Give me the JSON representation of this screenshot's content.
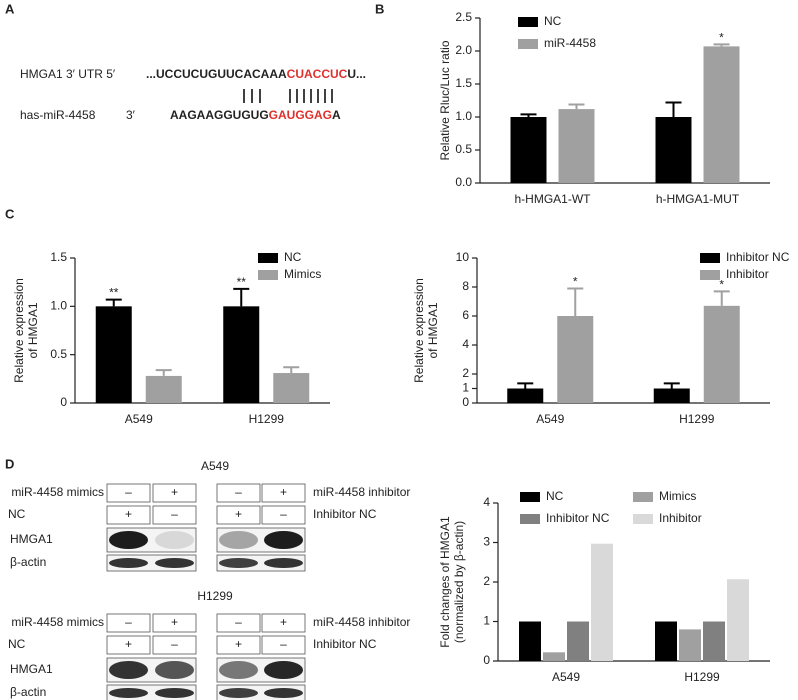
{
  "panel_labels": [
    "A",
    "B",
    "C",
    "D"
  ],
  "panel_a": {
    "rows": [
      {
        "label": "HMGA1 3′ UTR 5′",
        "seq_parts": [
          "...UCCUCUGUUCACAAA",
          "CUACCUC",
          "U..."
        ]
      },
      {
        "label": "has-miR-4458",
        "end": "3′",
        "seq_parts": [
          "AAGAAGGUGUG",
          "GAUGGAG",
          "A"
        ]
      }
    ]
  },
  "panel_d_blots": [
    {
      "title": "A549",
      "left_rows": [
        {
          "label": "miR-4458 mimics",
          "signs": [
            "–",
            "+"
          ]
        },
        {
          "label": "NC",
          "signs": [
            "+",
            "–"
          ]
        }
      ],
      "right_rows": [
        {
          "label": "miR-4458 inhibitor",
          "signs": [
            "–",
            "+"
          ]
        },
        {
          "label": "Inhibitor NC",
          "signs": [
            "+",
            "–"
          ]
        }
      ],
      "bands": [
        "HMGA1",
        "β-actin"
      ]
    },
    {
      "title": "H1299",
      "left_rows": [
        {
          "label": "miR-4458 mimics",
          "signs": [
            "–",
            "+"
          ]
        },
        {
          "label": "NC",
          "signs": [
            "+",
            "–"
          ]
        }
      ],
      "right_rows": [
        {
          "label": "miR-4458 inhibitor",
          "signs": [
            "–",
            "+"
          ]
        },
        {
          "label": "Inhibitor NC",
          "signs": [
            "+",
            "–"
          ]
        }
      ],
      "bands": [
        "HMGA1",
        "β-actin"
      ]
    }
  ],
  "chart_data": [
    {
      "type": "bar",
      "ylabel": [
        "Relative Rluc/Luc ratio"
      ],
      "categories": [
        "h-HMGA1-WT",
        "h-HMGA1-MUT"
      ],
      "series": [
        {
          "name": "NC",
          "color": "#000000",
          "values": [
            1.0,
            1.0
          ],
          "errors": [
            0.04,
            0.22
          ]
        },
        {
          "name": "miR-4458",
          "color": "#a0a0a0",
          "values": [
            1.12,
            2.07
          ],
          "errors": [
            0.07,
            0.03
          ],
          "significance": [
            null,
            "*"
          ]
        }
      ],
      "ylim": [
        0,
        2.5
      ],
      "yticks": [
        {
          "value": 0,
          "label": "0.0"
        },
        0.5,
        {
          "value": 1,
          "label": "1.0"
        },
        1.5,
        {
          "value": 2,
          "label": "2.0"
        },
        2.5
      ],
      "legend": "upper left"
    },
    {
      "type": "bar",
      "ylabel": [
        "Relative expression",
        "of HMGA1"
      ],
      "categories": [
        "A549",
        "H1299"
      ],
      "series": [
        {
          "name": "NC",
          "color": "#000000",
          "values": [
            1.0,
            1.0
          ],
          "errors": [
            0.07,
            0.18
          ],
          "significance": [
            "**",
            "**"
          ]
        },
        {
          "name": "Mimics",
          "color": "#a0a0a0",
          "values": [
            0.28,
            0.31
          ],
          "errors": [
            0.06,
            0.06
          ]
        }
      ],
      "ylim": [
        0,
        1.5
      ],
      "yticks": [
        0,
        0.5,
        {
          "value": 1,
          "label": "1.0"
        },
        1.5
      ],
      "legend": "upper right"
    },
    {
      "type": "bar",
      "ylabel": [
        "Relative expression",
        "of HMGA1"
      ],
      "categories": [
        "A549",
        "H1299"
      ],
      "series": [
        {
          "name": "Inhibitor NC",
          "color": "#000000",
          "values": [
            1.0,
            1.0
          ],
          "errors": [
            0.35,
            0.35
          ]
        },
        {
          "name": "Inhibitor",
          "color": "#a0a0a0",
          "values": [
            6.0,
            6.7
          ],
          "errors": [
            1.9,
            1.0
          ],
          "significance": [
            "*",
            "*"
          ]
        }
      ],
      "ylim": [
        0,
        10
      ],
      "yticks": [
        0,
        1,
        2,
        4,
        6,
        8,
        10
      ],
      "legend": "upper right"
    },
    {
      "type": "bar",
      "ylabel": [
        "Fold changes of HMGA1",
        "(normalized by β-actin)"
      ],
      "categories": [
        "A549",
        "H1299"
      ],
      "series": [
        {
          "name": "NC",
          "color": "#000000",
          "values": [
            1.0,
            1.0
          ]
        },
        {
          "name": "Mimics",
          "color": "#a0a0a0",
          "values": [
            0.22,
            0.8
          ]
        },
        {
          "name": "Inhibitor NC",
          "color": "#808080",
          "values": [
            1.0,
            1.0
          ]
        },
        {
          "name": "Inhibitor",
          "color": "#d9d9d9",
          "values": [
            2.97,
            2.07
          ]
        }
      ],
      "ylim": [
        0,
        4
      ],
      "yticks": [
        0,
        1,
        2,
        3,
        4
      ],
      "legend": "upper center"
    }
  ]
}
